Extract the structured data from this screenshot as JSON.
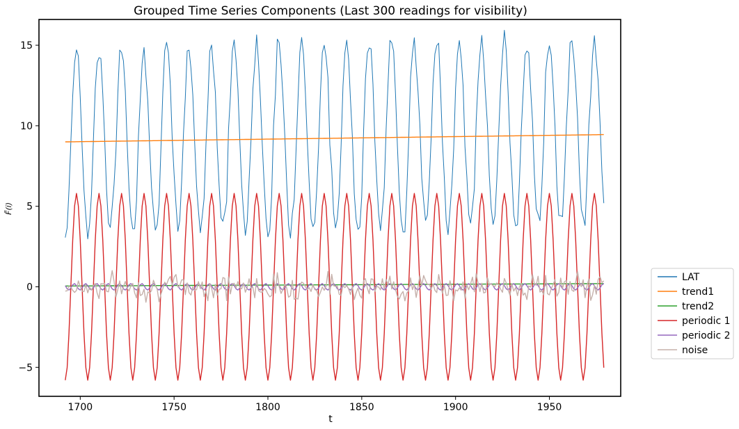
{
  "chart_data": {
    "type": "line",
    "title": "Grouped Time Series Components (Last 300 readings for visibility)",
    "xlabel": "t",
    "ylabel": "F̃(i)",
    "xlim": [
      1678,
      1988
    ],
    "ylim": [
      -6.8,
      16.6
    ],
    "x_ticks": [
      1700,
      1750,
      1800,
      1850,
      1900,
      1950
    ],
    "y_ticks": [
      -5,
      0,
      5,
      10,
      15
    ],
    "x_tick_labels": [
      "1700",
      "1750",
      "1800",
      "1850",
      "1900",
      "1950"
    ],
    "y_tick_labels": [
      "−5",
      "0",
      "5",
      "10",
      "15"
    ],
    "grid": false,
    "legend_position": "outside right, lower",
    "x_start": 1692,
    "x_end": 1979,
    "period": 12,
    "series": [
      {
        "name": "LAT",
        "color": "#1f77b4",
        "description": "sum of components",
        "start_value": 3.2,
        "end_value": 4.9,
        "min": 2.8,
        "max": 15.5
      },
      {
        "name": "trend1",
        "color": "#ff7f0e",
        "start_value": 9.0,
        "end_value": 9.45
      },
      {
        "name": "trend2",
        "color": "#2ca02c",
        "start_value": 0.05,
        "end_value": 0.2
      },
      {
        "name": "periodic 1",
        "color": "#d62728",
        "amplitude": 5.8,
        "start_value": -5.8,
        "end_value": -4.8
      },
      {
        "name": "periodic 2",
        "color": "#9467bd",
        "amplitude": 0.2
      },
      {
        "name": "noise",
        "color": "#c5b0aa",
        "amplitude": 0.8
      }
    ]
  },
  "legend": {
    "items": [
      "LAT",
      "trend1",
      "trend2",
      "periodic 1",
      "periodic 2",
      "noise"
    ]
  }
}
